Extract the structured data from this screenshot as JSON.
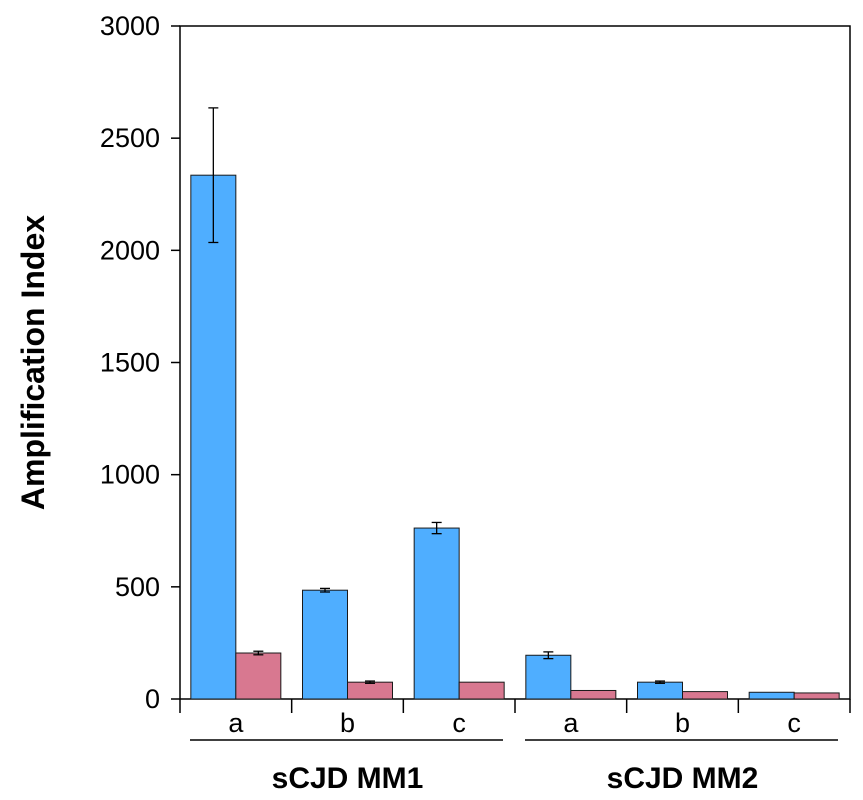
{
  "chart_data": {
    "type": "bar",
    "title": "",
    "xlabel": "",
    "ylabel": "Amplification Index",
    "ylim": [
      0,
      3000
    ],
    "yticks": [
      0,
      500,
      1000,
      1500,
      2000,
      2500,
      3000
    ],
    "grid": false,
    "legend": "none",
    "groups": [
      {
        "label": "sCJD MM1",
        "categories": [
          "a",
          "b",
          "c"
        ]
      },
      {
        "label": "sCJD MM2",
        "categories": [
          "a",
          "b",
          "c"
        ]
      }
    ],
    "categories": [
      "a",
      "b",
      "c",
      "a",
      "b",
      "c"
    ],
    "series": [
      {
        "color": "#4faeff",
        "values": [
          2335,
          485,
          762,
          195,
          75,
          30
        ],
        "errors": [
          300,
          8,
          25,
          15,
          5,
          0
        ]
      },
      {
        "color": "#d87890",
        "values": [
          205,
          75,
          75,
          38,
          33,
          27
        ],
        "errors": [
          8,
          5,
          0,
          0,
          0,
          0
        ]
      }
    ]
  }
}
